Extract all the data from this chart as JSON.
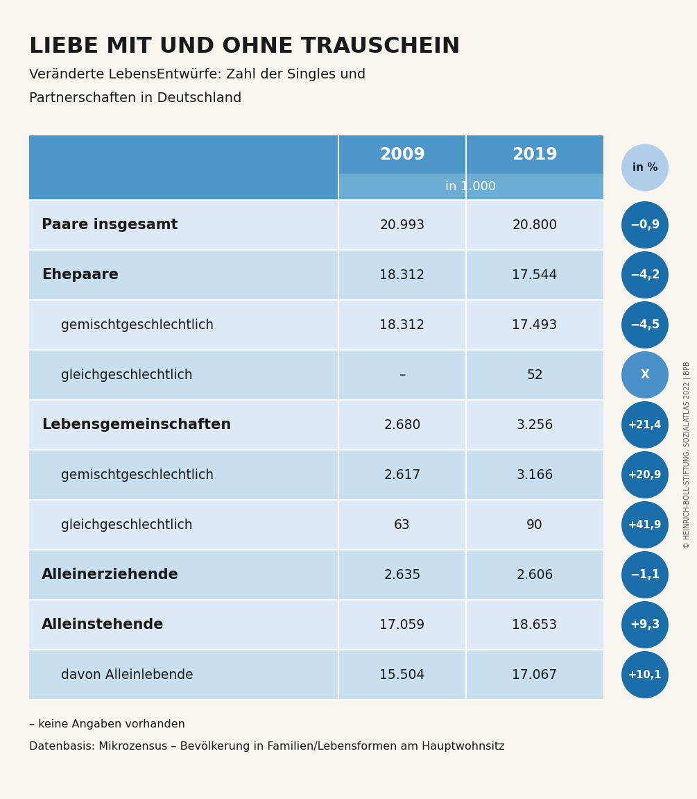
{
  "title": "LIEBE MIT UND OHNE TRAUSCHEIN",
  "subtitle_line1": "Veränderte LebensEntwürfe: Zahl der Singles und",
  "subtitle_line2": "Partnerschaften in Deutschland",
  "background_color": "#faf5ef",
  "table_header_bg": "#4d96c9",
  "table_subheader_bg": "#6badd4",
  "row_color_a": "#ddeaf6",
  "row_color_b": "#c8dff0",
  "circle_dark": "#1a6faa",
  "circle_medium": "#4a90c9",
  "circle_light_bg": "#b0ceea",
  "white": "#ffffff",
  "text_dark": "#1a1a1a",
  "text_gray": "#555555",
  "rows": [
    {
      "label": "Paare insgesamt",
      "bold": true,
      "indent": false,
      "val2009": "20.993",
      "val2019": "20.800",
      "pct": "−0,9",
      "pct_color": "#1a6faa"
    },
    {
      "label": "Ehepaare",
      "bold": true,
      "indent": false,
      "val2009": "18.312",
      "val2019": "17.544",
      "pct": "−4,2",
      "pct_color": "#1a6faa"
    },
    {
      "label": "gemischtgeschlechtlich",
      "bold": false,
      "indent": true,
      "val2009": "18.312",
      "val2019": "17.493",
      "pct": "−4,5",
      "pct_color": "#1a6faa"
    },
    {
      "label": "gleichgeschlechtlich",
      "bold": false,
      "indent": true,
      "val2009": "–",
      "val2019": "52",
      "pct": "X",
      "pct_color": "#4a90c9"
    },
    {
      "label": "Lebensgemeinschaften",
      "bold": true,
      "indent": false,
      "val2009": "2.680",
      "val2019": "3.256",
      "pct": "+21,4",
      "pct_color": "#1a6faa"
    },
    {
      "label": "gemischtgeschlechtlich",
      "bold": false,
      "indent": true,
      "val2009": "2.617",
      "val2019": "3.166",
      "pct": "+20,9",
      "pct_color": "#1a6faa"
    },
    {
      "label": "gleichgeschlechtlich",
      "bold": false,
      "indent": true,
      "val2009": "63",
      "val2019": "90",
      "pct": "+41,9",
      "pct_color": "#1a6faa"
    },
    {
      "label": "Alleinerziehende",
      "bold": true,
      "indent": false,
      "val2009": "2.635",
      "val2019": "2.606",
      "pct": "−1,1",
      "pct_color": "#1a6faa"
    },
    {
      "label": "Alleinstehende",
      "bold": true,
      "indent": false,
      "val2009": "17.059",
      "val2019": "18.653",
      "pct": "+9,3",
      "pct_color": "#1a6faa"
    },
    {
      "label": "davon Alleinlebende",
      "bold": false,
      "indent": true,
      "val2009": "15.504",
      "val2019": "17.067",
      "pct": "+10,1",
      "pct_color": "#1a6faa"
    }
  ],
  "footnote1": "– keine Angaben vorhanden",
  "footnote2": "Datenbasis: Mikrozensus – Bevölkerung in Familien/Lebensformen am Hauptwohnsitz",
  "copyright": "© HEINRICH-BÖLL-STIFTUNG, SOZIALATLAS 2022 | BPB"
}
